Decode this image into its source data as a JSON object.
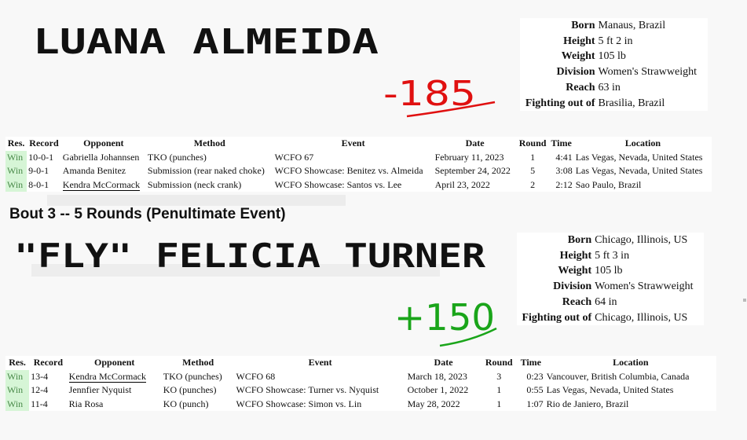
{
  "fighter1": {
    "name": "LUANA ALMEIDA",
    "odds": "-185",
    "odds_color": "#e01010",
    "profile": [
      {
        "label": "Born",
        "value": "Manaus, Brazil"
      },
      {
        "label": "Height",
        "value": "5 ft 2 in"
      },
      {
        "label": "Weight",
        "value": "105 lb"
      },
      {
        "label": "Division",
        "value": "Women's Strawweight"
      },
      {
        "label": "Reach",
        "value": "63 in"
      },
      {
        "label": "Fighting out of",
        "value": "Brasilia, Brazil"
      }
    ],
    "fights": [
      {
        "res": "Win",
        "record": "10-0-1",
        "opponent": "Gabriella Johannsen",
        "method": "TKO (punches)",
        "event": "WCFO 67",
        "date": "February 11, 2023",
        "round": "1",
        "time": "4:41",
        "location": "Las Vegas, Nevada, United States"
      },
      {
        "res": "Win",
        "record": "9-0-1",
        "opponent": "Amanda Benitez",
        "method": "Submission (rear naked choke)",
        "event": "WCFO Showcase: Benitez vs. Almeida",
        "date": "September 24, 2022",
        "round": "5",
        "time": "3:08",
        "location": "Las Vegas, Nevada, United States"
      },
      {
        "res": "Win",
        "record": "8-0-1",
        "opponent": "Kendra McCormack",
        "method": "Submission (neck crank)",
        "event": "WCFO Showcase: Santos vs. Lee",
        "date": "April 23, 2022",
        "round": "2",
        "time": "2:12",
        "location": "Sao Paulo, Brazil"
      }
    ]
  },
  "bout_heading": "Bout 3 -- 5 Rounds (Penultimate Event)",
  "fighter2": {
    "name": "\"FLY\" FELICIA TURNER",
    "odds": "+150",
    "odds_color": "#1aa51a",
    "profile": [
      {
        "label": "Born",
        "value": "Chicago, Illinois, US"
      },
      {
        "label": "Height",
        "value": "5 ft 3 in"
      },
      {
        "label": "Weight",
        "value": "105 lb"
      },
      {
        "label": "Division",
        "value": "Women's Strawweight"
      },
      {
        "label": "Reach",
        "value": "64 in"
      },
      {
        "label": "Fighting out of",
        "value": "Chicago, Illinois, US"
      }
    ],
    "fights": [
      {
        "res": "Win",
        "record": "13-4",
        "opponent": "Kendra McCormack",
        "method": "TKO (punches)",
        "event": "WCFO 68",
        "date": "March 18, 2023",
        "round": "3",
        "time": "0:23",
        "location": "Vancouver, British Columbia, Canada"
      },
      {
        "res": "Win",
        "record": "12-4",
        "opponent": "Jennfier Nyquist",
        "method": "KO (punches)",
        "event": "WCFO Showcase: Turner vs. Nyquist",
        "date": "October 1, 2022",
        "round": "1",
        "time": "0:55",
        "location": "Las Vegas, Nevada, United States"
      },
      {
        "res": "Win",
        "record": "11-4",
        "opponent": "Ria Rosa",
        "method": "KO (punch)",
        "event": "WCFO Showcase: Simon vs. Lin",
        "date": "May 28, 2022",
        "round": "1",
        "time": "1:07",
        "location": "Rio de Janiero, Brazil"
      }
    ]
  },
  "table_headers": {
    "res": "Res.",
    "record": "Record",
    "opponent": "Opponent",
    "method": "Method",
    "event": "Event",
    "date": "Date",
    "round": "Round",
    "time": "Time",
    "location": "Location"
  }
}
